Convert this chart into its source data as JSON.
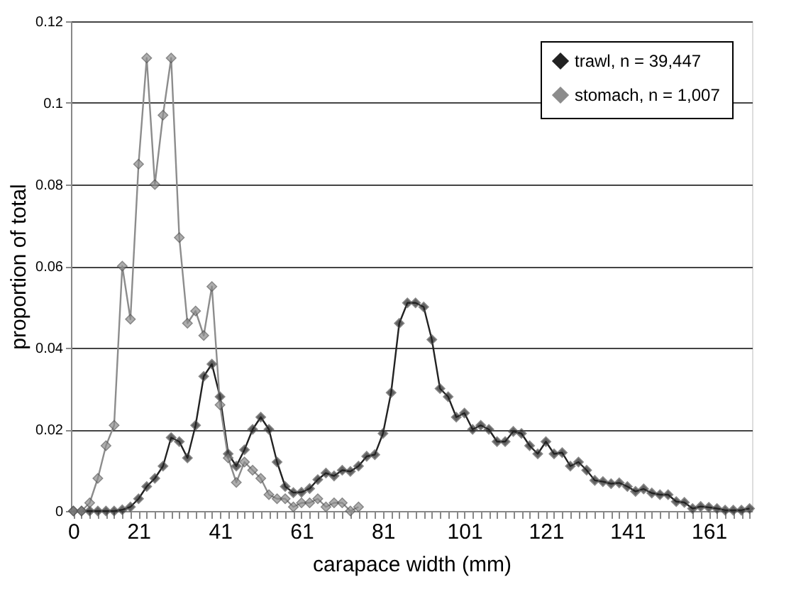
{
  "chart_data": {
    "type": "line",
    "xlabel": "carapace width (mm)",
    "ylabel": "proportion of total",
    "categories": [
      "0",
      null,
      null,
      null,
      null,
      null,
      null,
      null,
      "21",
      null,
      null,
      null,
      null,
      null,
      null,
      null,
      null,
      null,
      "41",
      null,
      null,
      null,
      null,
      null,
      null,
      null,
      null,
      null,
      "61",
      null,
      null,
      null,
      null,
      null,
      null,
      null,
      null,
      null,
      "81",
      null,
      null,
      null,
      null,
      null,
      null,
      null,
      null,
      null,
      "101",
      null,
      null,
      null,
      null,
      null,
      null,
      null,
      null,
      null,
      "121",
      null,
      null,
      null,
      null,
      null,
      null,
      null,
      null,
      null,
      "141",
      null,
      null,
      null,
      null,
      null,
      null,
      null,
      null,
      null,
      "161",
      null,
      null,
      null,
      null,
      null
    ],
    "series": [
      {
        "name": "trawl, n = 39,447",
        "color": "#222222",
        "values": [
          0,
          0,
          0,
          0,
          0,
          0,
          0.0003,
          0.001,
          0.003,
          0.006,
          0.008,
          0.011,
          0.018,
          0.017,
          0.013,
          0.021,
          0.033,
          0.036,
          0.028,
          0.014,
          0.011,
          0.015,
          0.02,
          0.023,
          0.02,
          0.012,
          0.006,
          0.0045,
          0.0046,
          0.0055,
          0.0077,
          0.0093,
          0.0086,
          0.01,
          0.0097,
          0.011,
          0.0134,
          0.0138,
          0.019,
          0.029,
          0.046,
          0.051,
          0.051,
          0.05,
          0.042,
          0.03,
          0.028,
          0.023,
          0.024,
          0.02,
          0.021,
          0.02,
          0.017,
          0.017,
          0.0195,
          0.019,
          0.016,
          0.014,
          0.017,
          0.014,
          0.0143,
          0.011,
          0.012,
          0.01,
          0.0075,
          0.0072,
          0.0067,
          0.0069,
          0.006,
          0.0048,
          0.0054,
          0.0044,
          0.004,
          0.004,
          0.0023,
          0.0021,
          0.0006,
          0.0011,
          0.0009,
          0.0006,
          0.0002,
          0.0002,
          0.0002,
          0.0006
        ]
      },
      {
        "name": "stomach, n = 1,007",
        "color": "#8c8c8c",
        "values": [
          0,
          0,
          0.002,
          0.008,
          0.016,
          0.021,
          0.06,
          0.047,
          0.085,
          0.111,
          0.08,
          0.097,
          0.111,
          0.067,
          0.046,
          0.049,
          0.043,
          0.055,
          0.026,
          0.013,
          0.007,
          0.012,
          0.01,
          0.008,
          0.004,
          0.003,
          0.003,
          0.001,
          0.002,
          0.002,
          0.003,
          0.001,
          0.002,
          0.002,
          0,
          0.001,
          null,
          null,
          null,
          null,
          null,
          null,
          null,
          null,
          null,
          null,
          null,
          null,
          null,
          null,
          null,
          null,
          null,
          null,
          null,
          null,
          null,
          null,
          null,
          null,
          null,
          null,
          null,
          null,
          null,
          null,
          null,
          null,
          null,
          null,
          null,
          null,
          null,
          null,
          null,
          null,
          null,
          null,
          null,
          null,
          null,
          null,
          null,
          null
        ]
      }
    ],
    "ylim": [
      0,
      0.12
    ],
    "yticks": [
      0,
      0.02,
      0.04,
      0.06,
      0.08,
      0.1,
      0.12
    ],
    "grid": "y",
    "legend": "top right",
    "marker": "diamond",
    "line_style": "solid"
  }
}
